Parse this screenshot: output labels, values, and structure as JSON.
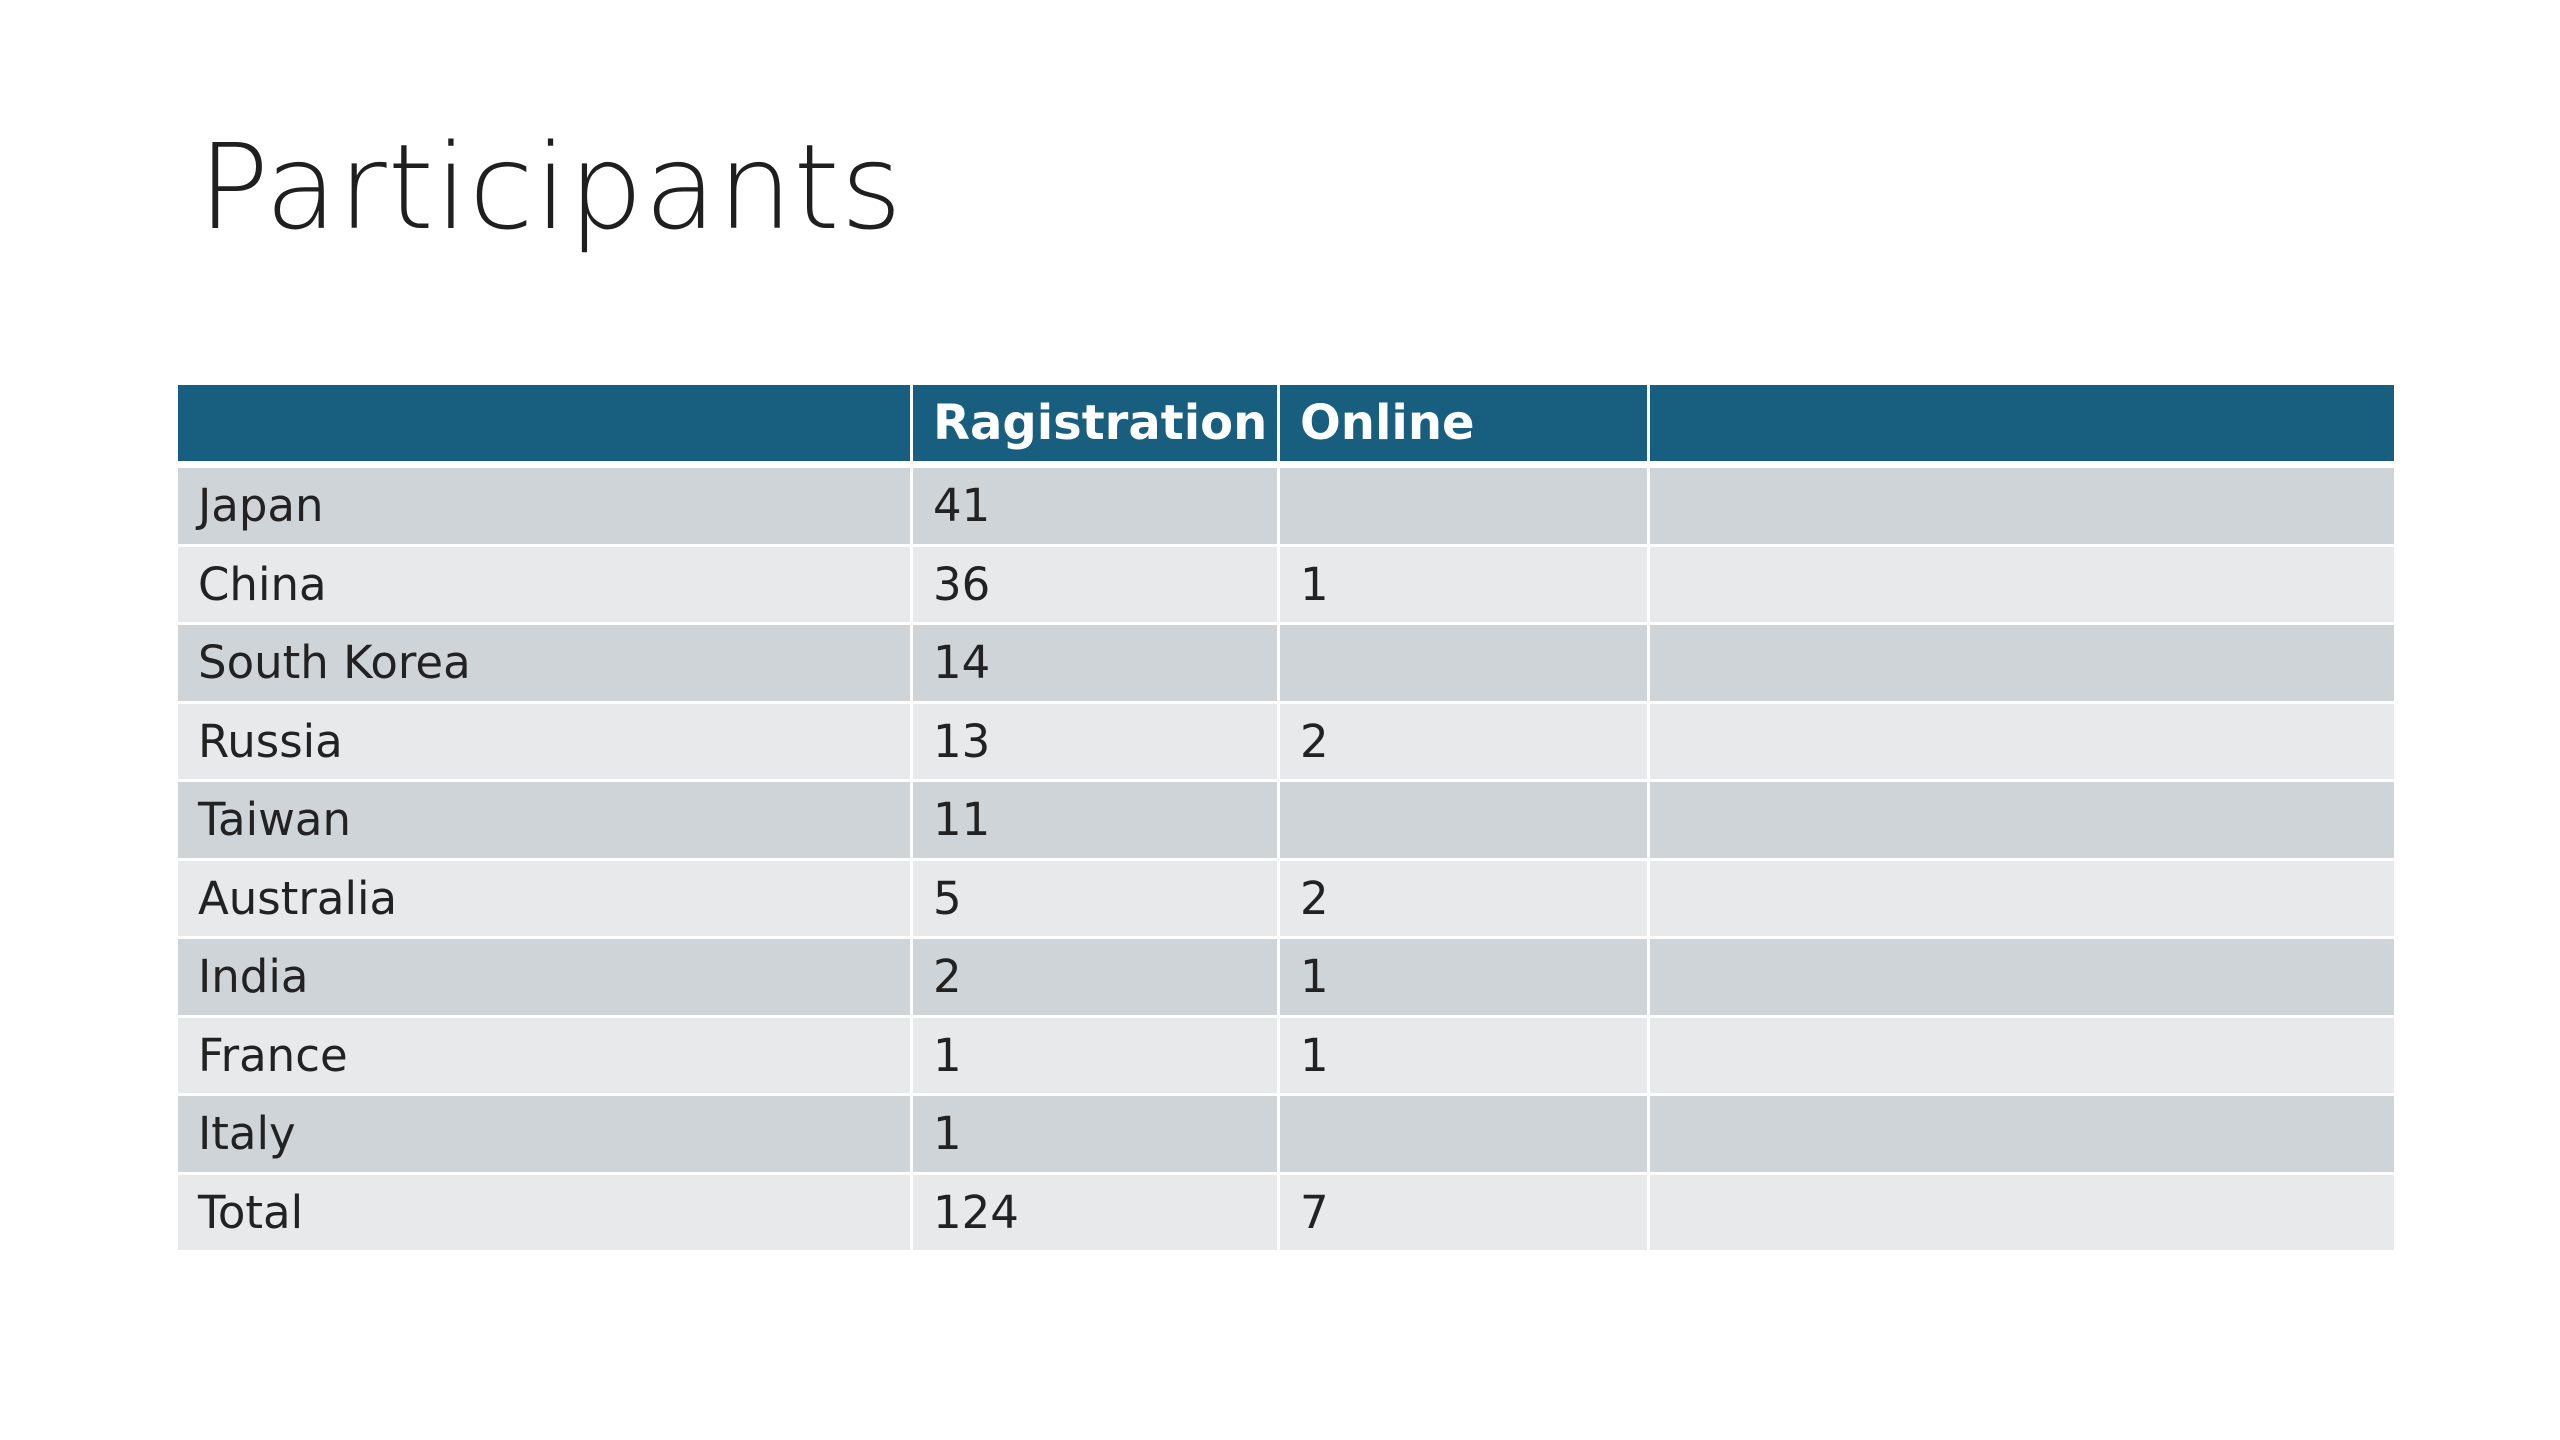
{
  "slide": {
    "title": "Participants"
  },
  "table": {
    "headers": [
      "",
      "Ragistration",
      "Online",
      ""
    ],
    "rows": [
      {
        "country": "Japan",
        "registration": "41",
        "online": "",
        "extra": ""
      },
      {
        "country": "China",
        "registration": "36",
        "online": "1",
        "extra": ""
      },
      {
        "country": "South Korea",
        "registration": "14",
        "online": "",
        "extra": ""
      },
      {
        "country": "Russia",
        "registration": "13",
        "online": "2",
        "extra": ""
      },
      {
        "country": "Taiwan",
        "registration": "11",
        "online": "",
        "extra": ""
      },
      {
        "country": "Australia",
        "registration": "5",
        "online": "2",
        "extra": ""
      },
      {
        "country": "India",
        "registration": "2",
        "online": "1",
        "extra": ""
      },
      {
        "country": "France",
        "registration": "1",
        "online": "1",
        "extra": ""
      },
      {
        "country": "Italy",
        "registration": "1",
        "online": "",
        "extra": ""
      },
      {
        "country": "Total",
        "registration": "124",
        "online": "7",
        "extra": ""
      }
    ]
  },
  "colors": {
    "header_bg": "#175e7f",
    "row_dark": "#cfd4d9",
    "row_light": "#e7e9eb"
  }
}
